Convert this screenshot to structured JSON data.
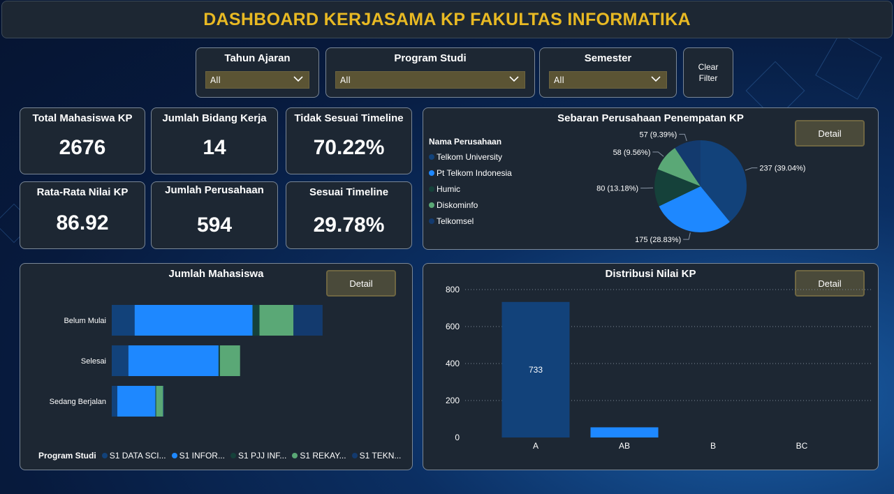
{
  "header": {
    "title": "DASHBOARD KERJASAMA KP FAKULTAS INFORMATIKA"
  },
  "filters": {
    "tahun": {
      "label": "Tahun Ajaran",
      "value": "All"
    },
    "prodi": {
      "label": "Program Studi",
      "value": "All"
    },
    "semester": {
      "label": "Semester",
      "value": "All"
    },
    "clear": {
      "line1": "Clear",
      "line2": "Filter"
    }
  },
  "kpis": {
    "total_mhs": {
      "label": "Total Mahasiswa KP",
      "value": "2676"
    },
    "bidang": {
      "label": "Jumlah Bidang Kerja",
      "value": "14"
    },
    "tidak_sesuai": {
      "label": "Tidak Sesuai Timeline",
      "value": "70.22%"
    },
    "rata_nilai": {
      "label": "Rata-Rata Nilai KP",
      "value": "86.92"
    },
    "perusahaan": {
      "label": "Jumlah Perusahaan",
      "value": "594"
    },
    "sesuai": {
      "label": "Sesuai Timeline",
      "value": "29.78%"
    }
  },
  "colors": {
    "dark_blue": "#12427a",
    "bright_blue": "#1e88ff",
    "dark_green": "#15413a",
    "green": "#5aa876",
    "navy": "#133a6e",
    "accent_gold": "#e8b923",
    "panel": "#1d2733"
  },
  "pie": {
    "title": "Sebaran Perusahaan Penempatan KP",
    "detail": "Detail",
    "legend_title": "Nama Perusahaan",
    "slice_labels": [
      "237 (39.04%)",
      "175 (28.83%)",
      "80 (13.18%)",
      "58 (9.56%)",
      "57 (9.39%)"
    ]
  },
  "bar": {
    "title": "Jumlah Mahasiswa",
    "detail": "Detail",
    "legend_title": "Program Studi",
    "legend": [
      "S1 DATA SCI...",
      "S1 INFOR...",
      "S1 PJJ INF...",
      "S1 REKAY...",
      "S1 TEKN..."
    ]
  },
  "col": {
    "title": "Distribusi Nilai KP",
    "detail": "Detail"
  },
  "chart_data": [
    {
      "type": "pie",
      "title": "Sebaran Perusahaan Penempatan KP",
      "legend_title": "Nama Perusahaan",
      "categories": [
        "Telkom University",
        "Pt Telkom Indonesia",
        "Humic",
        "Diskominfo",
        "Telkomsel"
      ],
      "values": [
        237,
        175,
        80,
        58,
        57
      ],
      "percents": [
        39.04,
        28.83,
        13.18,
        9.56,
        9.39
      ],
      "colors": [
        "#12427a",
        "#1e88ff",
        "#15413a",
        "#5aa876",
        "#133a6e"
      ],
      "legend_position": "left"
    },
    {
      "type": "bar",
      "orientation": "horizontal",
      "stacked": true,
      "title": "Jumlah Mahasiswa",
      "categories": [
        "Belum Mulai",
        "Selesai",
        "Sedang Berjalan"
      ],
      "series": [
        {
          "name": "S1 DATA SCI...",
          "values": [
            33,
            24,
            8
          ],
          "color": "#12427a"
        },
        {
          "name": "S1 INFOR...",
          "values": [
            170,
            130,
            55
          ],
          "color": "#1e88ff"
        },
        {
          "name": "S1 PJJ INF...",
          "values": [
            10,
            2,
            1
          ],
          "color": "#15413a"
        },
        {
          "name": "S1 REKAY...",
          "values": [
            49,
            29,
            10
          ],
          "color": "#5aa876"
        },
        {
          "name": "S1 TEKN...",
          "values": [
            42,
            0,
            1
          ],
          "color": "#133a6e"
        }
      ],
      "legend_position": "bottom"
    },
    {
      "type": "bar",
      "orientation": "vertical",
      "title": "Distribusi Nilai KP",
      "categories": [
        "A",
        "AB",
        "B",
        "BC"
      ],
      "values": [
        733,
        55,
        0,
        0
      ],
      "data_labels": [
        "733",
        "",
        "",
        ""
      ],
      "colors": [
        "#12427a",
        "#1e88ff",
        "#1e88ff",
        "#1e88ff"
      ],
      "ylim": [
        0,
        800
      ],
      "yticks": [
        0,
        200,
        400,
        600,
        800
      ],
      "grid": true
    }
  ]
}
